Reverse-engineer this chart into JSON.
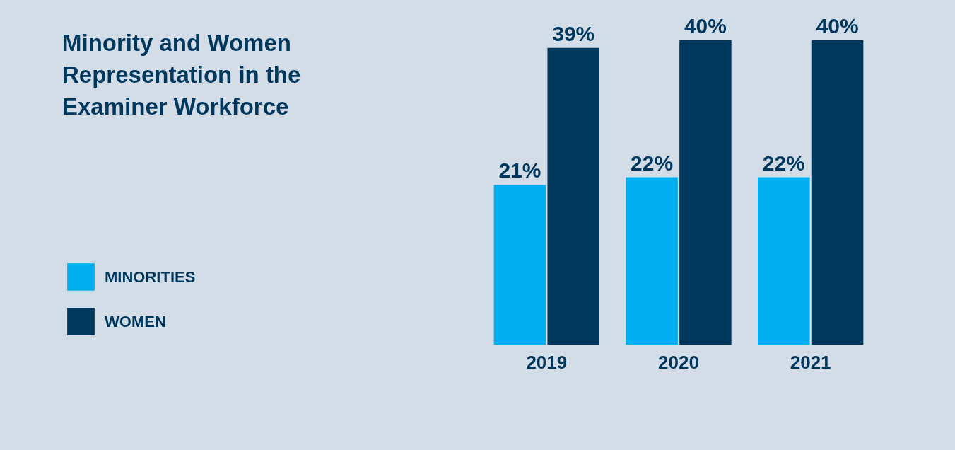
{
  "chart_data": {
    "type": "bar",
    "title": "Minority and Women Representation in the Examiner Workforce",
    "categories": [
      "2019",
      "2020",
      "2021"
    ],
    "series": [
      {
        "name": "MINORITIES",
        "color": "#00aeef",
        "values": [
          21,
          22,
          22
        ],
        "value_labels": [
          "21%",
          "22%",
          "22%"
        ]
      },
      {
        "name": "WOMEN",
        "color": "#00375c",
        "values": [
          39,
          40,
          40
        ],
        "value_labels": [
          "39%",
          "40%",
          "40%"
        ]
      }
    ],
    "legend": "left",
    "grid": false
  }
}
